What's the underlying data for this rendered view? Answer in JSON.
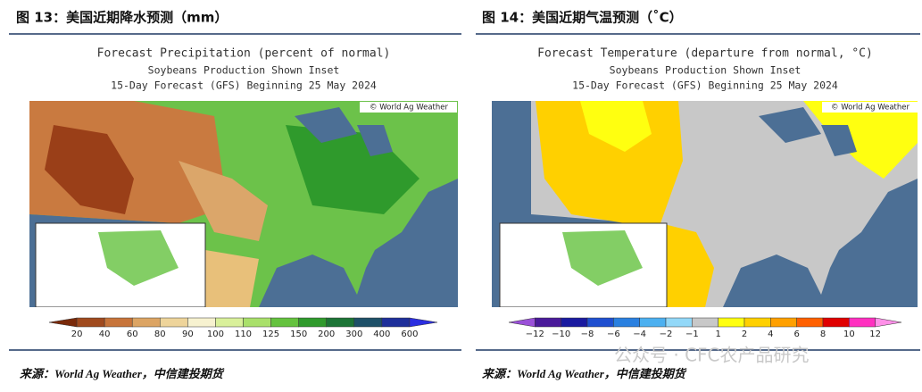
{
  "figures": [
    {
      "caption": "图 13：美国近期降水预测（mm）",
      "map_title": [
        "Forecast Precipitation (percent of normal)",
        "Soybeans Production Shown Inset",
        "15-Day Forecast (GFS) Beginning 25 May 2024"
      ],
      "credit": "© World Ag Weather",
      "legend_labels": [
        "20",
        "40",
        "60",
        "80",
        "90",
        "100",
        "110",
        "125",
        "150",
        "200",
        "300",
        "400",
        "600"
      ],
      "legend_colors": [
        "#7a2a0a",
        "#a04a1e",
        "#c7743a",
        "#dca463",
        "#eed49a",
        "#f7f2d0",
        "#d9f09a",
        "#a9e06a",
        "#64c23e",
        "#2f9a2c",
        "#1c7436",
        "#1e5068",
        "#1e2f9a",
        "#2b2ee0"
      ],
      "source": "来源：World Ag Weather，中信建投期货"
    },
    {
      "caption": "图 14：美国近期气温预测（˚C）",
      "map_title": [
        "Forecast Temperature (departure from normal, °C)",
        "Soybeans Production Shown Inset",
        "15-Day Forecast (GFS) Beginning 25 May 2024"
      ],
      "credit": "© World Ag Weather",
      "legend_labels": [
        "−12",
        "−10",
        "−8",
        "−6",
        "−4",
        "−2",
        "−1",
        "1",
        "2",
        "4",
        "6",
        "8",
        "10",
        "12"
      ],
      "legend_colors": [
        "#9a50d8",
        "#4a1a9a",
        "#1a1aa0",
        "#1f4fd0",
        "#2a80e0",
        "#4cb0f0",
        "#92d8f8",
        "#c8c8c8",
        "#ffff10",
        "#ffd000",
        "#ffa000",
        "#ff6000",
        "#e00000",
        "#ff30c0",
        "#ff90e8"
      ],
      "source": "来源：World Ag Weather，中信建投期货"
    }
  ],
  "watermark": "公众号 · CFC农产品研究"
}
